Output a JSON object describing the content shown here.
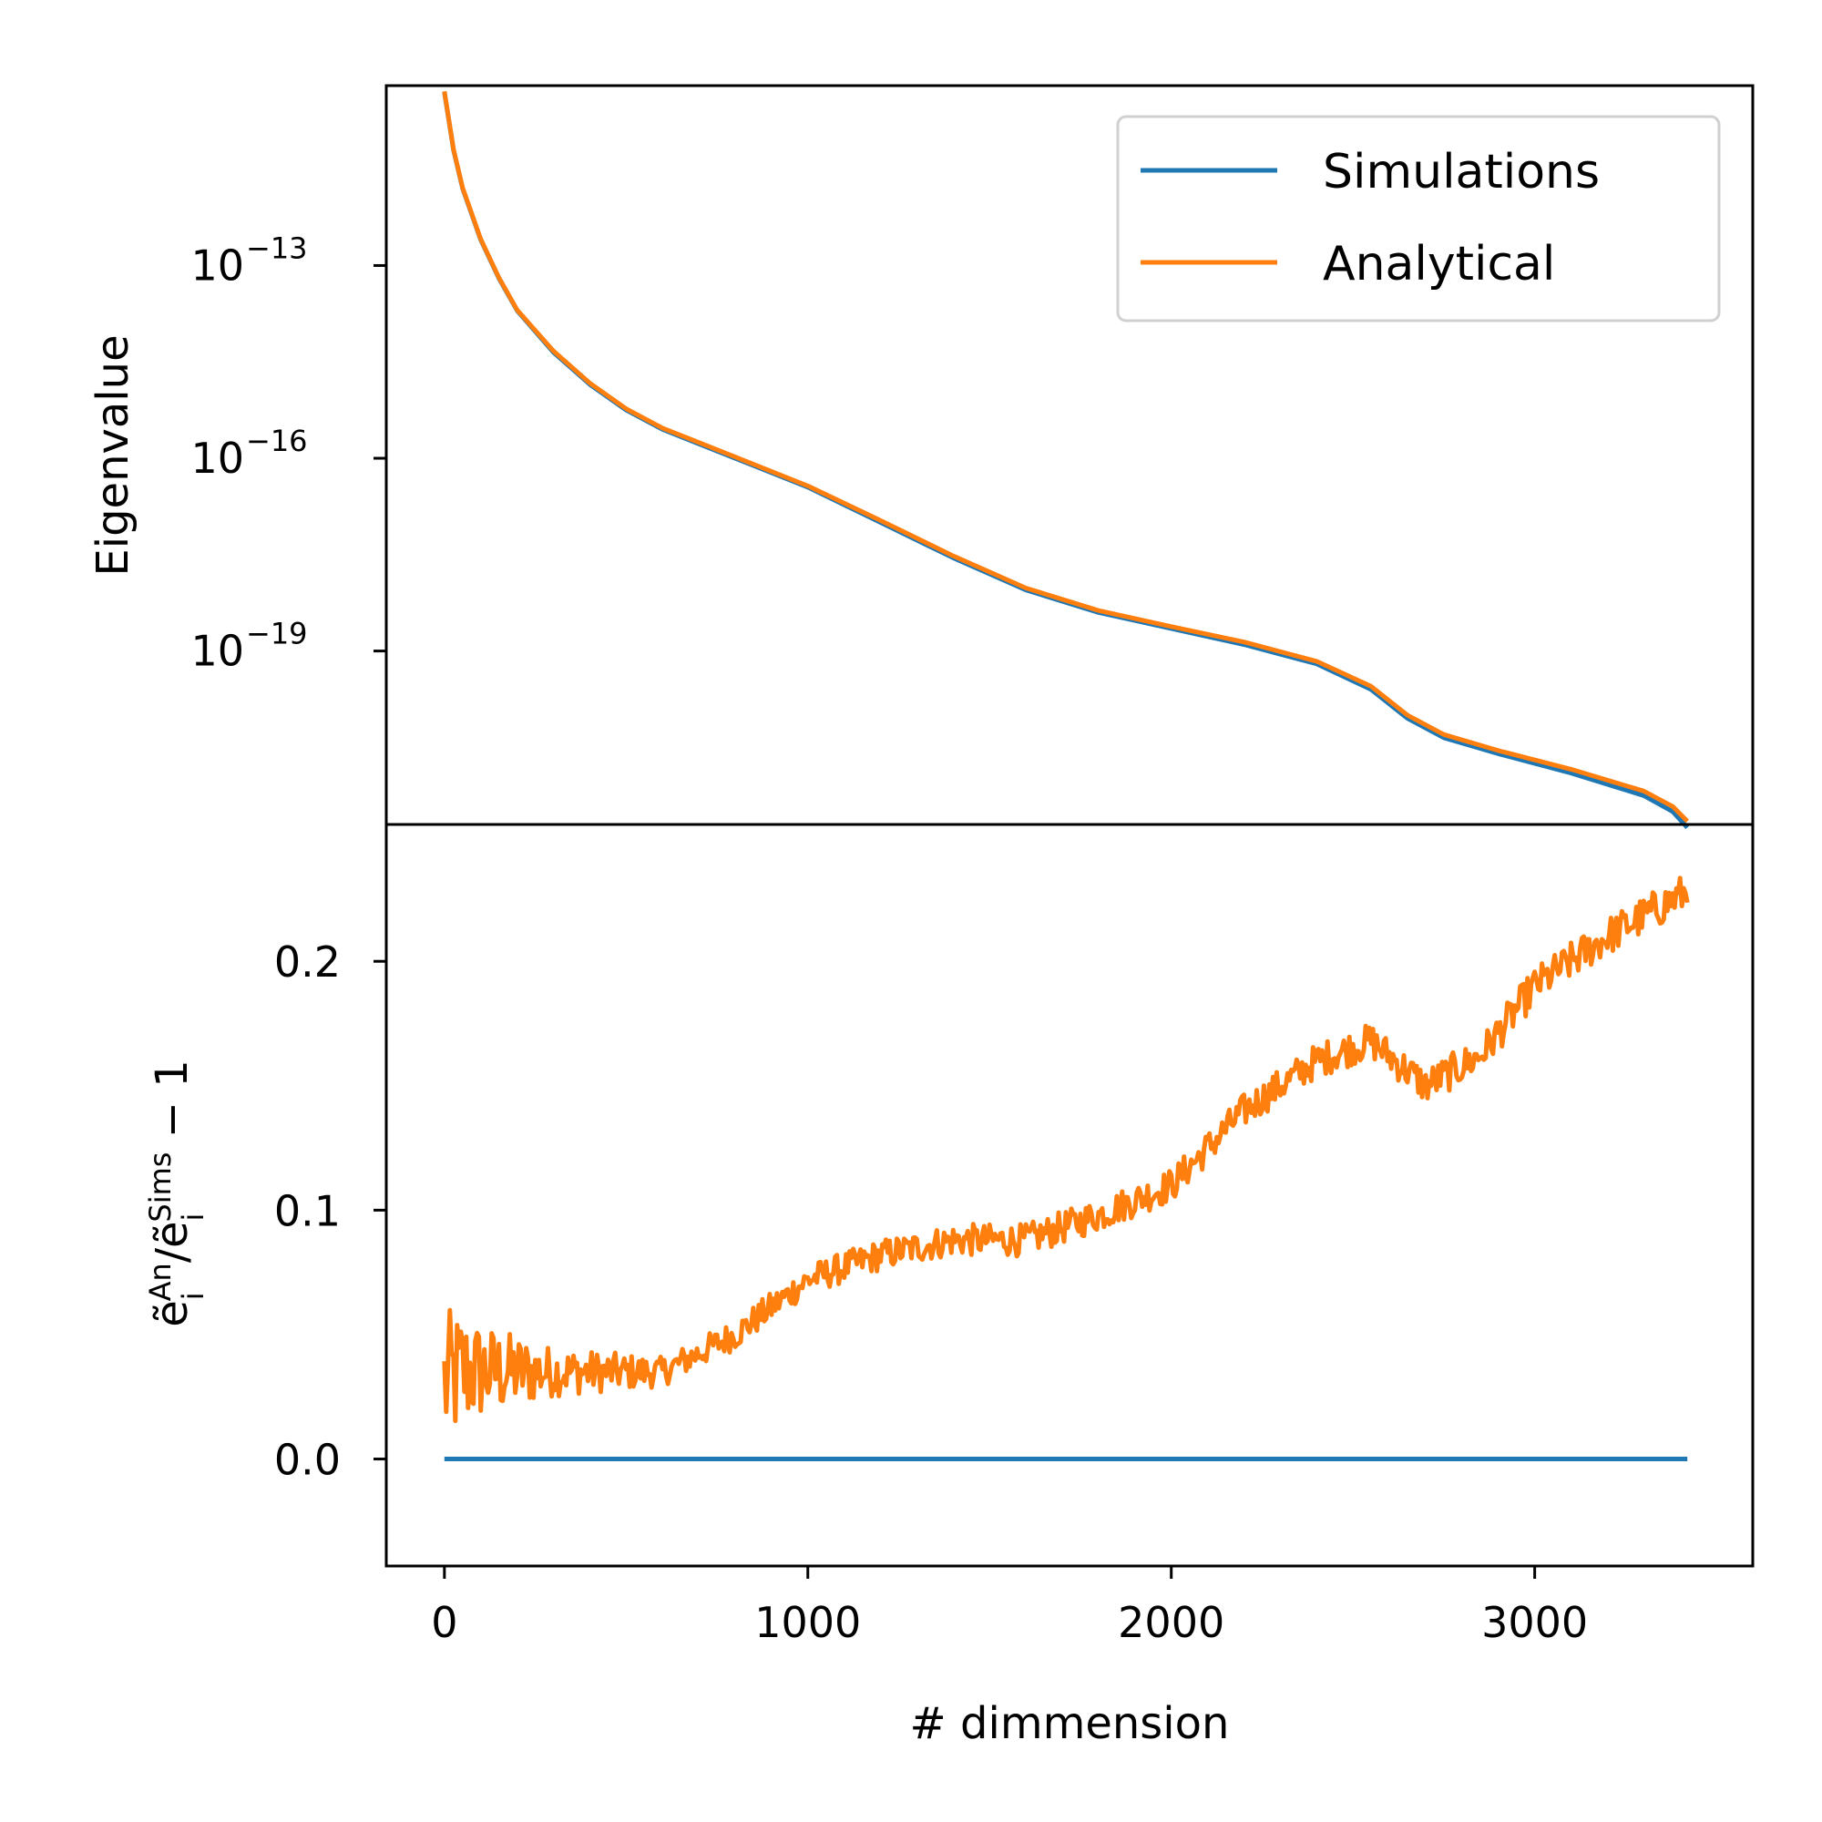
{
  "colors": {
    "simulations": "#1f77b4",
    "analytical": "#ff7f0e"
  },
  "chart_data": [
    {
      "type": "line",
      "yscale": "log",
      "ylabel": "Eigenvalue",
      "xlim": [
        -160,
        3600
      ],
      "ylim_exponent": [
        -21.7,
        -10.2
      ],
      "y_ticks": [
        {
          "exp": -13,
          "base": "10",
          "label": "−13"
        },
        {
          "exp": -16,
          "base": "10",
          "label": "−16"
        },
        {
          "exp": -19,
          "base": "10",
          "label": "−19"
        }
      ],
      "legend": {
        "placement": "top-right",
        "entries": [
          "Simulations",
          "Analytical"
        ]
      },
      "series": [
        {
          "name": "Simulations",
          "color": "simulations",
          "x": [
            0,
            25,
            50,
            100,
            150,
            200,
            300,
            400,
            500,
            600,
            800,
            1000,
            1200,
            1400,
            1600,
            1800,
            2000,
            2200,
            2400,
            2550,
            2650,
            2750,
            2900,
            3100,
            3300,
            3380,
            3420
          ],
          "log10_y": [
            -10.3,
            -11.2,
            -11.8,
            -12.6,
            -13.2,
            -13.7,
            -14.35,
            -14.85,
            -15.25,
            -15.55,
            -16.0,
            -16.45,
            -17.0,
            -17.55,
            -18.05,
            -18.4,
            -18.65,
            -18.9,
            -19.2,
            -19.6,
            -20.05,
            -20.35,
            -20.6,
            -20.9,
            -21.25,
            -21.5,
            -21.75
          ]
        },
        {
          "name": "Analytical",
          "color": "analytical",
          "x": [
            0,
            25,
            50,
            100,
            150,
            200,
            300,
            400,
            500,
            600,
            800,
            1000,
            1200,
            1400,
            1600,
            1800,
            2000,
            2200,
            2400,
            2550,
            2650,
            2750,
            2900,
            3100,
            3300,
            3380,
            3420
          ],
          "log10_y": [
            -10.29,
            -11.19,
            -11.79,
            -12.59,
            -13.19,
            -13.69,
            -14.33,
            -14.83,
            -15.23,
            -15.53,
            -15.98,
            -16.43,
            -16.97,
            -17.52,
            -18.02,
            -18.37,
            -18.62,
            -18.86,
            -19.16,
            -19.55,
            -20.0,
            -20.3,
            -20.55,
            -20.84,
            -21.18,
            -21.42,
            -21.65
          ]
        }
      ]
    },
    {
      "type": "line",
      "ylabel_base": "ẽ",
      "ylabel_sub_1": "i",
      "ylabel_sup_1": "An",
      "ylabel_slash": "/",
      "ylabel_sub_2": "i",
      "ylabel_sup_2": "Sims",
      "ylabel_tail": " − 1",
      "xlabel": "# dimmension",
      "xlim": [
        -160,
        3600
      ],
      "ylim": [
        -0.043,
        0.255
      ],
      "x_ticks": [
        0,
        1000,
        2000,
        3000
      ],
      "y_ticks": [
        "0.0",
        "0.1",
        "0.2"
      ],
      "series": [
        {
          "name": "Simulations",
          "color": "simulations",
          "x": [
            0,
            3420
          ],
          "y": [
            0.0,
            0.0
          ]
        },
        {
          "name": "Analytical",
          "color": "analytical",
          "x_start": 0,
          "x_end": 3420,
          "x_step": 5,
          "trend_x": [
            0,
            50,
            200,
            400,
            600,
            800,
            1000,
            1200,
            1400,
            1600,
            1800,
            2000,
            2200,
            2400,
            2550,
            2700,
            2850,
            3000,
            3200,
            3420
          ],
          "trend_y": [
            0.03,
            0.035,
            0.035,
            0.035,
            0.035,
            0.05,
            0.072,
            0.082,
            0.088,
            0.088,
            0.098,
            0.11,
            0.14,
            0.16,
            0.168,
            0.15,
            0.162,
            0.19,
            0.21,
            0.228
          ],
          "noise_x": [
            0,
            100,
            300,
            600,
            2400,
            3420
          ],
          "noise_amp": [
            0.03,
            0.02,
            0.01,
            0.006,
            0.007,
            0.008
          ]
        }
      ]
    }
  ]
}
